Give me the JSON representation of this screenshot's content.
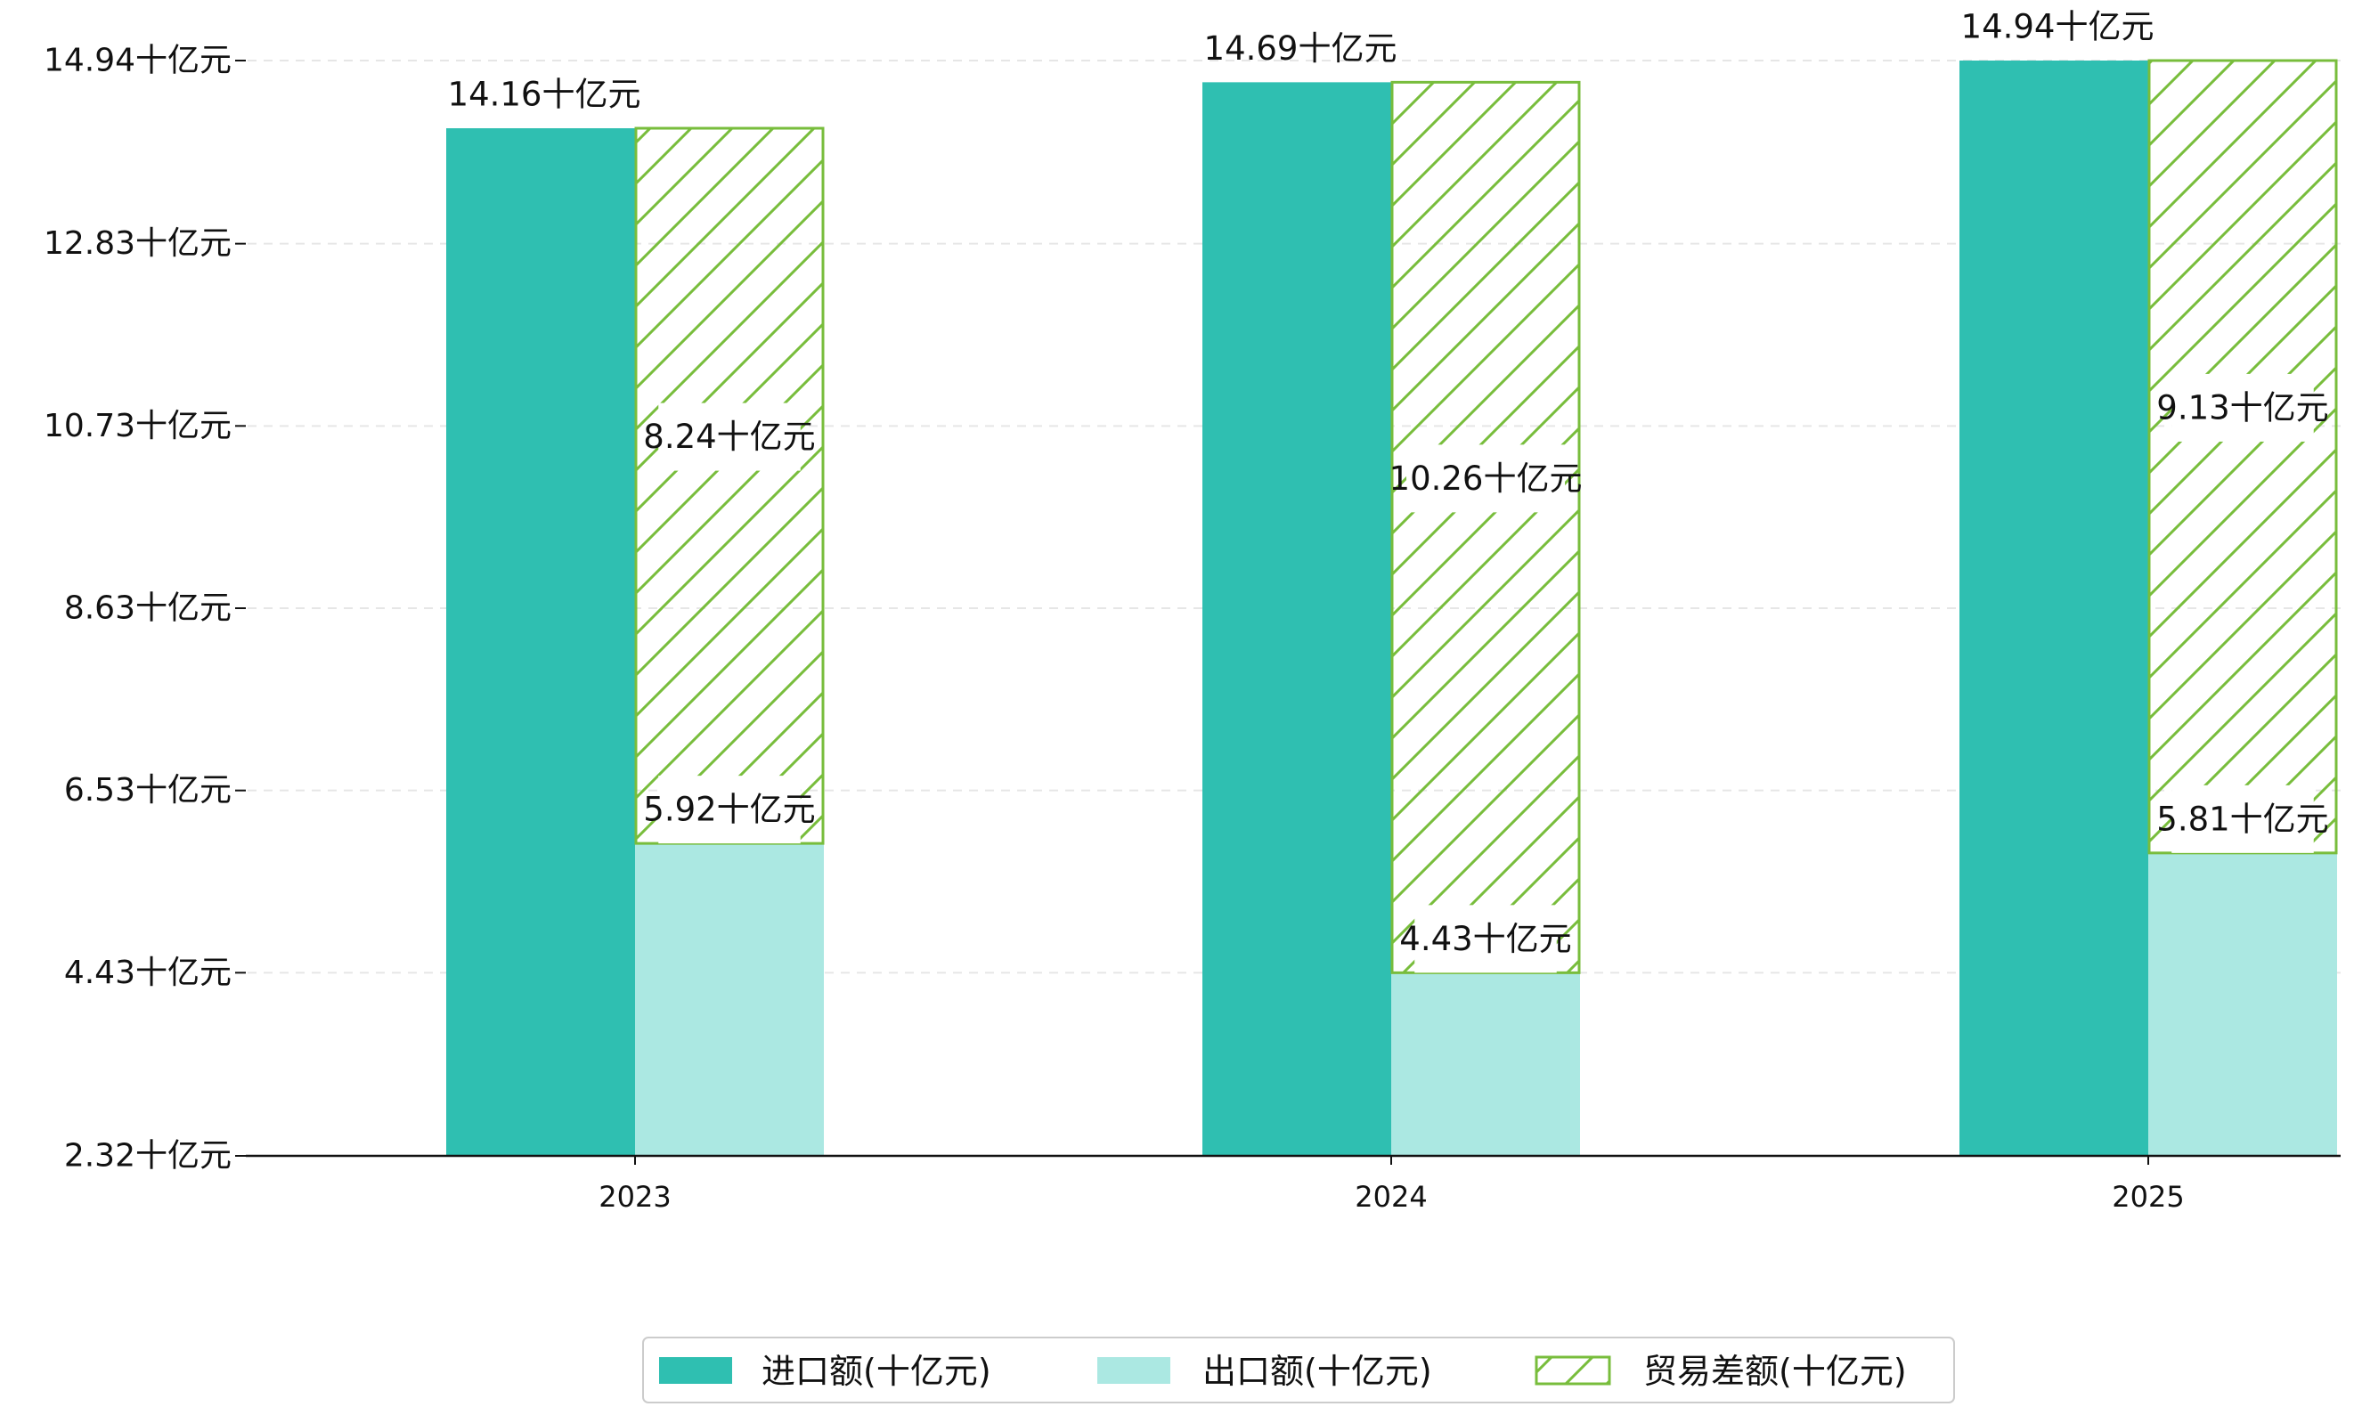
{
  "chart_data": {
    "type": "bar",
    "categories": [
      "2023",
      "2024",
      "2025"
    ],
    "series": [
      {
        "name": "进口额(十亿元)",
        "values": [
          14.16,
          14.69,
          14.94
        ],
        "color": "#2fbfb1",
        "labels": [
          "14.16十亿元",
          "14.69十亿元",
          "14.94十亿元"
        ]
      },
      {
        "name": "出口额(十亿元)",
        "values": [
          5.92,
          4.43,
          5.81
        ],
        "color": "#abe8e2",
        "labels": [
          "5.92十亿元",
          "4.43十亿元",
          "5.81十亿元"
        ]
      },
      {
        "name": "贸易差额(十亿元)",
        "values": [
          8.24,
          10.26,
          9.13
        ],
        "color": "#78bd3c",
        "labels": [
          "8.24十亿元",
          "10.26十亿元",
          "9.13十亿元"
        ]
      }
    ],
    "stacked_series": "贸易差额(十亿元) stacked on 出口额(十亿元)",
    "yticks": [
      "2.32十亿元",
      "4.43十亿元",
      "6.53十亿元",
      "8.63十亿元",
      "10.73十亿元",
      "12.83十亿元",
      "14.94十亿元"
    ],
    "ytick_values": [
      2.32,
      4.43,
      6.53,
      8.63,
      10.73,
      12.83,
      14.94
    ],
    "ylim": [
      2.32,
      14.94
    ],
    "grid": "horizontal dashed",
    "legend_position": "bottom-center",
    "title": "",
    "xlabel": "",
    "ylabel": ""
  }
}
